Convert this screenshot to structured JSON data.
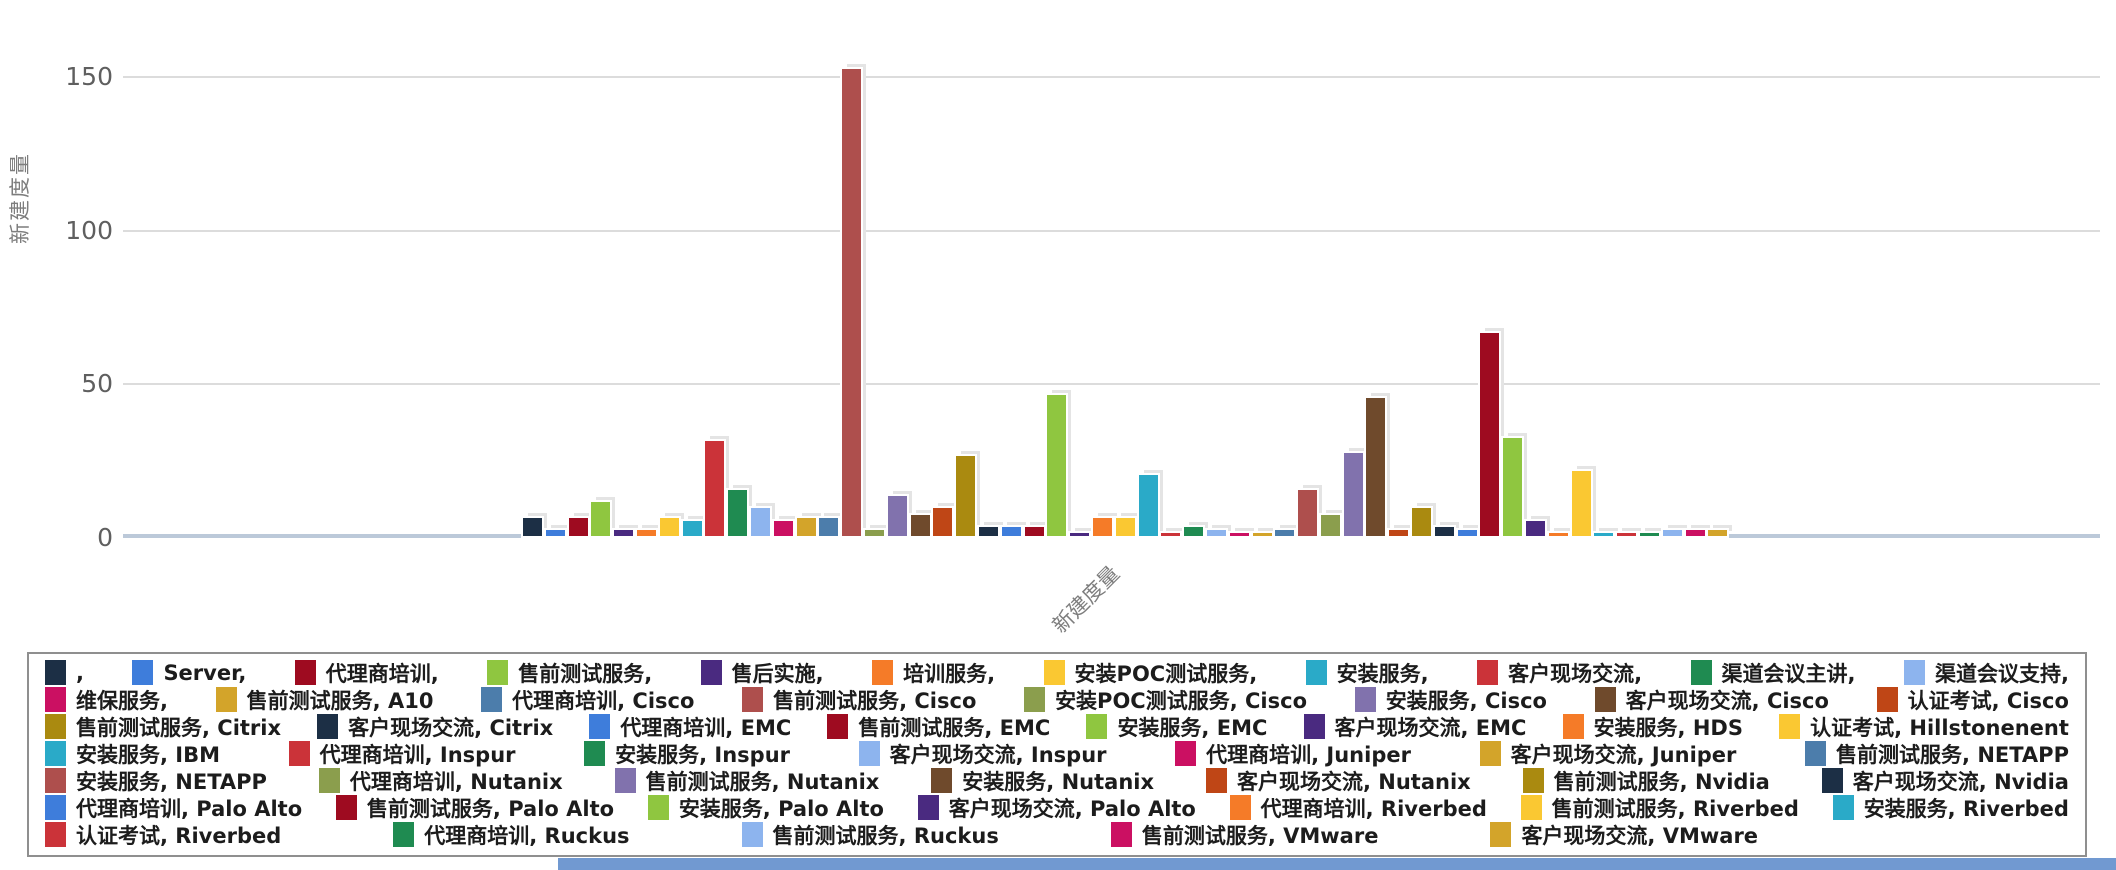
{
  "chart_data": {
    "type": "bar",
    "title": "",
    "ylabel": "新建度量",
    "xlabel": "",
    "x_tick_label": "新建度量",
    "yticks": [
      0,
      50,
      100,
      150
    ],
    "ylim": [
      0,
      155
    ],
    "grid": true,
    "legend_position": "bottom",
    "palette": [
      "#1c2f45",
      "#3e7ddb",
      "#9e0b20",
      "#8fc640",
      "#4a2a80",
      "#f57b28",
      "#fac832",
      "#2aaac8",
      "#cb3339",
      "#1f8b51",
      "#8db4ee",
      "#cb1062",
      "#d3a42a",
      "#4c7dab",
      "#ae4f4d",
      "#8b9e4d",
      "#8172ad",
      "#6f4a2c",
      "#bf4616",
      "#aa8a10"
    ],
    "series": [
      {
        "label": ",",
        "value": 6,
        "color": "#1c2f45"
      },
      {
        "label": "Server,",
        "value": 2,
        "color": "#3e7ddb"
      },
      {
        "label": "代理商培训,",
        "value": 6,
        "color": "#9e0b20"
      },
      {
        "label": "售前测试服务,",
        "value": 11,
        "color": "#8fc640"
      },
      {
        "label": "售后实施,",
        "value": 2,
        "color": "#4a2a80"
      },
      {
        "label": "培训服务,",
        "value": 2,
        "color": "#f57b28"
      },
      {
        "label": "安装POC测试服务,",
        "value": 6,
        "color": "#fac832"
      },
      {
        "label": "安装服务,",
        "value": 5,
        "color": "#2aaac8"
      },
      {
        "label": "客户现场交流,",
        "value": 31,
        "color": "#cb3339"
      },
      {
        "label": "渠道会议主讲,",
        "value": 15,
        "color": "#1f8b51"
      },
      {
        "label": "渠道会议支持,",
        "value": 9,
        "color": "#8db4ee"
      },
      {
        "label": "维保服务,",
        "value": 5,
        "color": "#cb1062"
      },
      {
        "label": "售前测试服务, A10",
        "value": 6,
        "color": "#d3a42a"
      },
      {
        "label": "代理商培训, Cisco",
        "value": 6,
        "color": "#4c7dab"
      },
      {
        "label": "售前测试服务, Cisco",
        "value": 152,
        "color": "#ae4f4d"
      },
      {
        "label": "安装POC测试服务, Cisco",
        "value": 2,
        "color": "#8b9e4d"
      },
      {
        "label": "安装服务, Cisco",
        "value": 13,
        "color": "#8172ad"
      },
      {
        "label": "客户现场交流, Cisco",
        "value": 7,
        "color": "#6f4a2c"
      },
      {
        "label": "认证考试, Cisco",
        "value": 9,
        "color": "#bf4616"
      },
      {
        "label": "售前测试服务, Citrix",
        "value": 26,
        "color": "#aa8a10"
      },
      {
        "label": "客户现场交流, Citrix",
        "value": 3,
        "color": "#1c2f45"
      },
      {
        "label": "代理商培训, EMC",
        "value": 3,
        "color": "#3e7ddb"
      },
      {
        "label": "售前测试服务, EMC",
        "value": 3,
        "color": "#9e0b20"
      },
      {
        "label": "安装服务, EMC",
        "value": 46,
        "color": "#8fc640"
      },
      {
        "label": "客户现场交流, EMC",
        "value": 1,
        "color": "#4a2a80"
      },
      {
        "label": "安装服务, HDS",
        "value": 6,
        "color": "#f57b28"
      },
      {
        "label": "认证考试, Hillstonenent",
        "value": 6,
        "color": "#fac832"
      },
      {
        "label": "安装服务, IBM",
        "value": 20,
        "color": "#2aaac8"
      },
      {
        "label": "代理商培训, Inspur",
        "value": 1,
        "color": "#cb3339"
      },
      {
        "label": "安装服务, Inspur",
        "value": 3,
        "color": "#1f8b51"
      },
      {
        "label": "客户现场交流, Inspur",
        "value": 2,
        "color": "#8db4ee"
      },
      {
        "label": "代理商培训, Juniper",
        "value": 1,
        "color": "#cb1062"
      },
      {
        "label": "客户现场交流, Juniper",
        "value": 1,
        "color": "#d3a42a"
      },
      {
        "label": "售前测试服务, NETAPP",
        "value": 2,
        "color": "#4c7dab"
      },
      {
        "label": "安装服务, NETAPP",
        "value": 15,
        "color": "#ae4f4d"
      },
      {
        "label": "代理商培训, Nutanix",
        "value": 7,
        "color": "#8b9e4d"
      },
      {
        "label": "售前测试服务, Nutanix",
        "value": 27,
        "color": "#8172ad"
      },
      {
        "label": "安装服务, Nutanix",
        "value": 45,
        "color": "#6f4a2c"
      },
      {
        "label": "客户现场交流, Nutanix",
        "value": 2,
        "color": "#bf4616"
      },
      {
        "label": "售前测试服务, Nvidia",
        "value": 9,
        "color": "#aa8a10"
      },
      {
        "label": "客户现场交流, Nvidia",
        "value": 3,
        "color": "#1c2f45"
      },
      {
        "label": "代理商培训, Palo Alto",
        "value": 2,
        "color": "#3e7ddb"
      },
      {
        "label": "售前测试服务, Palo Alto",
        "value": 66,
        "color": "#9e0b20"
      },
      {
        "label": "安装服务, Palo Alto",
        "value": 32,
        "color": "#8fc640"
      },
      {
        "label": "客户现场交流, Palo Alto",
        "value": 5,
        "color": "#4a2a80"
      },
      {
        "label": "代理商培训, Riverbed",
        "value": 1,
        "color": "#f57b28"
      },
      {
        "label": "售前测试服务, Riverbed",
        "value": 21,
        "color": "#fac832"
      },
      {
        "label": "安装服务, Riverbed",
        "value": 1,
        "color": "#2aaac8"
      },
      {
        "label": "认证考试, Riverbed",
        "value": 1,
        "color": "#cb3339"
      },
      {
        "label": "代理商培训, Ruckus",
        "value": 1,
        "color": "#1f8b51"
      },
      {
        "label": "售前测试服务, Ruckus",
        "value": 2,
        "color": "#8db4ee"
      },
      {
        "label": "售前测试服务, VMware",
        "value": 2,
        "color": "#cb1062"
      },
      {
        "label": "客户现场交流, VMware",
        "value": 2,
        "color": "#d3a42a"
      }
    ],
    "legend_row_counts": [
      11,
      8,
      8,
      7,
      7,
      7,
      5
    ]
  },
  "page": {
    "bottom_strip_color": "#7199d1",
    "axis_baseline_color": "#bcc9d9",
    "gridline_color": "#dcdcdc"
  }
}
